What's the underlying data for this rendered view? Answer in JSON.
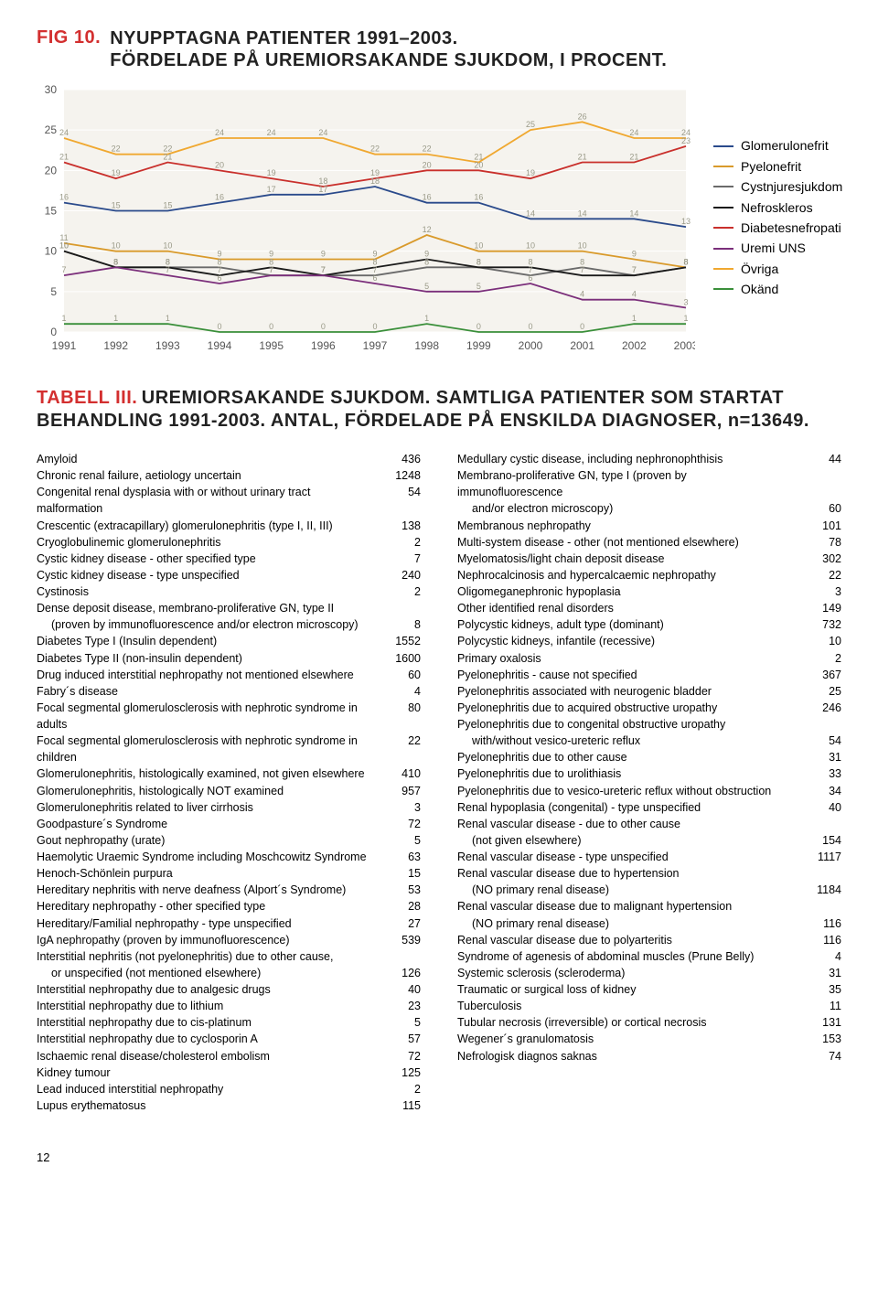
{
  "fig": {
    "label": "FIG 10.",
    "title_line1": "NYUPPTAGNA PATIENTER 1991–2003.",
    "title_line2": "FÖRDELADE PÅ UREMIORSAKANDE SJUKDOM, I PROCENT.",
    "chart": {
      "type": "line",
      "background_color": "#ffffff",
      "plot_bg": "#f5f3ee",
      "grid_color": "#ffffff",
      "years": [
        "1991",
        "1992",
        "1993",
        "1994",
        "1995",
        "1996",
        "1997",
        "1998",
        "1999",
        "2000",
        "2001",
        "2002",
        "2003"
      ],
      "y_ticks": [
        0,
        5,
        10,
        15,
        20,
        25,
        30
      ],
      "ylim": [
        0,
        30
      ],
      "label_fontsize": 12,
      "data_label_color": "#9a9a88",
      "series": [
        {
          "name": "Glomerulonefrit",
          "color": "#2a4a8b",
          "values": [
            16,
            15,
            15,
            16,
            17,
            17,
            18,
            16,
            16,
            14,
            14,
            14,
            13
          ]
        },
        {
          "name": "Pyelonefrit",
          "color": "#d99a2b",
          "values": [
            11,
            10,
            10,
            9,
            9,
            9,
            9,
            12,
            10,
            10,
            10,
            9,
            8
          ]
        },
        {
          "name": "Cystnjuresjukdom",
          "color": "#6a6a6a",
          "values": [
            10,
            8,
            8,
            8,
            7,
            7,
            7,
            8,
            8,
            7,
            8,
            7,
            8
          ]
        },
        {
          "name": "Nefroskleros",
          "color": "#1a1a1a",
          "values": [
            10,
            8,
            8,
            7,
            8,
            7,
            8,
            9,
            8,
            8,
            7,
            7,
            8
          ]
        },
        {
          "name": "Diabetesnefropati",
          "color": "#c9302c",
          "values": [
            21,
            19,
            21,
            20,
            19,
            18,
            19,
            20,
            20,
            19,
            21,
            21,
            23
          ]
        },
        {
          "name": "Uremi UNS",
          "color": "#7b2f7b",
          "values": [
            7,
            8,
            7,
            6,
            7,
            7,
            6,
            5,
            5,
            6,
            4,
            4,
            3
          ]
        },
        {
          "name": "Övriga",
          "color": "#f0a830",
          "values": [
            24,
            22,
            22,
            24,
            24,
            24,
            22,
            22,
            21,
            25,
            26,
            24,
            24
          ]
        },
        {
          "name": "Okänd",
          "color": "#3a8f3a",
          "values": [
            1,
            1,
            1,
            0,
            0,
            0,
            0,
            1,
            0,
            0,
            0,
            1,
            1
          ]
        }
      ],
      "legend_labels": [
        "Glomerulonefrit",
        "Pyelonefrit",
        "Cystnjuresjukdom",
        "Nefroskleros",
        "Diabetesnefropati",
        "Uremi UNS",
        "Övriga",
        "Okänd"
      ],
      "legend_colors": [
        "#2a4a8b",
        "#d99a2b",
        "#6a6a6a",
        "#1a1a1a",
        "#c9302c",
        "#7b2f7b",
        "#f0a830",
        "#3a8f3a"
      ]
    }
  },
  "tabell": {
    "label": "TABELL III.",
    "title_rest": "UREMIORSAKANDE SJUKDOM. SAMTLIGA PATIENTER SOM STARTAT BEHANDLING 1991-2003. ANTAL, FÖRDELADE PÅ ENSKILDA DIAGNOSER, n=13649.",
    "col1": [
      {
        "lbl": "Amyloid",
        "val": "436"
      },
      {
        "lbl": "Chronic renal failure, aetiology uncertain",
        "val": "1248"
      },
      {
        "lbl": "Congenital renal dysplasia with or without urinary tract malformation",
        "val": "54"
      },
      {
        "lbl": "Crescentic (extracapillary) glomerulonephritis (type I, II, III)",
        "val": "138"
      },
      {
        "lbl": "Cryoglobulinemic glomerulonephritis",
        "val": "2"
      },
      {
        "lbl": "Cystic kidney disease - other specified type",
        "val": "7"
      },
      {
        "lbl": "Cystic kidney disease - type unspecified",
        "val": "240"
      },
      {
        "lbl": "Cystinosis",
        "val": "2"
      },
      {
        "lbl": "Dense deposit disease, membrano-proliferative GN, type II",
        "val": ""
      },
      {
        "lbl": "(proven by immunofluorescence and/or electron microscopy)",
        "val": "8",
        "indent": true
      },
      {
        "lbl": "Diabetes Type I (Insulin dependent)",
        "val": "1552"
      },
      {
        "lbl": "Diabetes Type II (non-insulin dependent)",
        "val": "1600"
      },
      {
        "lbl": "Drug induced interstitial nephropathy not mentioned elsewhere",
        "val": "60"
      },
      {
        "lbl": "Fabry´s disease",
        "val": "4"
      },
      {
        "lbl": "Focal segmental glomerulosclerosis with nephrotic syndrome in adults",
        "val": "80"
      },
      {
        "lbl": "Focal segmental glomerulosclerosis with nephrotic syndrome in children",
        "val": "22"
      },
      {
        "lbl": "Glomerulonephritis, histologically examined, not given elsewhere",
        "val": "410"
      },
      {
        "lbl": "Glomerulonephritis, histologically NOT examined",
        "val": "957"
      },
      {
        "lbl": "Glomerulonephritis related to liver cirrhosis",
        "val": "3"
      },
      {
        "lbl": "Goodpasture´s Syndrome",
        "val": "72"
      },
      {
        "lbl": "Gout nephropathy (urate)",
        "val": "5"
      },
      {
        "lbl": "Haemolytic Uraemic Syndrome including Moschcowitz Syndrome",
        "val": "63"
      },
      {
        "lbl": "Henoch-Schönlein purpura",
        "val": "15"
      },
      {
        "lbl": "Hereditary nephritis with nerve deafness (Alport´s Syndrome)",
        "val": "53"
      },
      {
        "lbl": "Hereditary nephropathy - other specified type",
        "val": "28"
      },
      {
        "lbl": "Hereditary/Familial nephropathy - type unspecified",
        "val": "27"
      },
      {
        "lbl": "IgA nephropathy (proven by immunofluorescence)",
        "val": "539"
      },
      {
        "lbl": "Interstitial nephritis (not pyelonephritis) due to other cause,",
        "val": ""
      },
      {
        "lbl": "or unspecified (not mentioned elsewhere)",
        "val": "126",
        "indent": true
      },
      {
        "lbl": "Interstitial nephropathy due to analgesic drugs",
        "val": "40"
      },
      {
        "lbl": "Interstitial nephropathy due to lithium",
        "val": "23"
      },
      {
        "lbl": "Interstitial nephropathy due to cis-platinum",
        "val": "5"
      },
      {
        "lbl": "Interstitial nephropathy due to cyclosporin A",
        "val": "57"
      },
      {
        "lbl": "Ischaemic renal disease/cholesterol embolism",
        "val": "72"
      },
      {
        "lbl": "Kidney tumour",
        "val": "125"
      },
      {
        "lbl": "Lead induced interstitial nephropathy",
        "val": "2"
      },
      {
        "lbl": "Lupus erythematosus",
        "val": "115"
      }
    ],
    "col2": [
      {
        "lbl": "Medullary cystic disease, including nephronophthisis",
        "val": "44"
      },
      {
        "lbl": "Membrano-proliferative GN, type I (proven by immunofluorescence",
        "val": ""
      },
      {
        "lbl": "and/or electron microscopy)",
        "val": "60",
        "indent": true
      },
      {
        "lbl": "Membranous nephropathy",
        "val": "101"
      },
      {
        "lbl": "Multi-system disease - other (not mentioned elsewhere)",
        "val": "78"
      },
      {
        "lbl": "Myelomatosis/light chain deposit disease",
        "val": "302"
      },
      {
        "lbl": "Nephrocalcinosis and hypercalcaemic nephropathy",
        "val": "22"
      },
      {
        "lbl": "Oligomeganephronic hypoplasia",
        "val": "3"
      },
      {
        "lbl": "Other identified renal disorders",
        "val": "149"
      },
      {
        "lbl": "Polycystic kidneys, adult type (dominant)",
        "val": "732"
      },
      {
        "lbl": "Polycystic kidneys, infantile (recessive)",
        "val": "10"
      },
      {
        "lbl": "Primary oxalosis",
        "val": "2"
      },
      {
        "lbl": "Pyelonephritis - cause not specified",
        "val": "367"
      },
      {
        "lbl": "Pyelonephritis associated with neurogenic bladder",
        "val": "25"
      },
      {
        "lbl": "Pyelonephritis due to acquired obstructive uropathy",
        "val": "246"
      },
      {
        "lbl": "Pyelonephritis due to congenital obstructive uropathy",
        "val": ""
      },
      {
        "lbl": "with/without vesico-ureteric reflux",
        "val": "54",
        "indent": true
      },
      {
        "lbl": "Pyelonephritis due to other cause",
        "val": "31"
      },
      {
        "lbl": "Pyelonephritis due to urolithiasis",
        "val": "33"
      },
      {
        "lbl": "Pyelonephritis due to vesico-ureteric reflux without obstruction",
        "val": "34"
      },
      {
        "lbl": "Renal hypoplasia (congenital) - type unspecified",
        "val": "40"
      },
      {
        "lbl": "Renal vascular disease - due to other cause",
        "val": ""
      },
      {
        "lbl": "(not given elsewhere)",
        "val": "154",
        "indent": true
      },
      {
        "lbl": "Renal vascular disease - type unspecified",
        "val": "1117"
      },
      {
        "lbl": "Renal vascular disease due to hypertension",
        "val": ""
      },
      {
        "lbl": "(NO primary renal disease)",
        "val": "1184",
        "indent": true
      },
      {
        "lbl": "Renal vascular disease due to malignant hypertension",
        "val": ""
      },
      {
        "lbl": "(NO primary renal disease)",
        "val": "116",
        "indent": true
      },
      {
        "lbl": "Renal vascular disease due to polyarteritis",
        "val": "116"
      },
      {
        "lbl": "Syndrome of agenesis of abdominal muscles (Prune Belly)",
        "val": "4"
      },
      {
        "lbl": "Systemic sclerosis (scleroderma)",
        "val": "31"
      },
      {
        "lbl": "Traumatic or surgical loss of kidney",
        "val": "35"
      },
      {
        "lbl": "Tuberculosis",
        "val": "11"
      },
      {
        "lbl": "Tubular necrosis (irreversible) or cortical necrosis",
        "val": "131"
      },
      {
        "lbl": "Wegener´s granulomatosis",
        "val": "153"
      },
      {
        "lbl": "Nefrologisk diagnos saknas",
        "val": "74"
      }
    ]
  },
  "page_number": "12"
}
